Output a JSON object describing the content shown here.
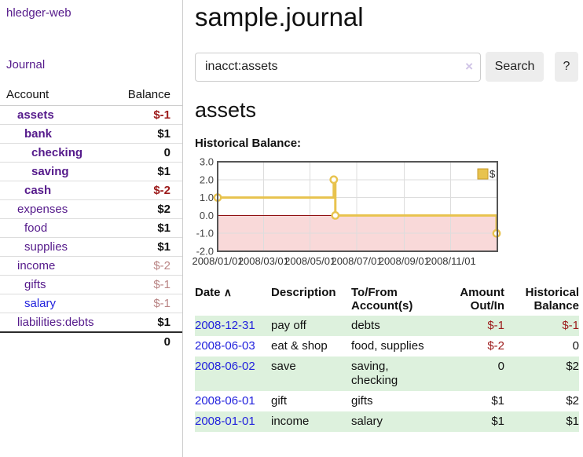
{
  "sidebar": {
    "brand": "hledger-web",
    "journal_link": "Journal",
    "accounts_table": {
      "headers": {
        "account": "Account",
        "balance": "Balance"
      },
      "rows": [
        {
          "label": "assets",
          "depth": 1,
          "bold": true,
          "link_color": "purple",
          "balance": "$-1",
          "balance_class": "neg-strong"
        },
        {
          "label": "bank",
          "depth": 2,
          "bold": true,
          "link_color": "purple",
          "balance": "$1",
          "balance_class": "pos"
        },
        {
          "label": "checking",
          "depth": 3,
          "bold": true,
          "link_color": "purple",
          "balance": "0",
          "balance_class": "pos"
        },
        {
          "label": "saving",
          "depth": 3,
          "bold": true,
          "link_color": "purple",
          "balance": "$1",
          "balance_class": "pos"
        },
        {
          "label": "cash",
          "depth": 2,
          "bold": true,
          "link_color": "purple",
          "balance": "$-2",
          "balance_class": "neg-strong"
        },
        {
          "label": "expenses",
          "depth": 1,
          "bold": false,
          "link_color": "purple",
          "balance": "$2",
          "balance_class": "pos"
        },
        {
          "label": "food",
          "depth": 2,
          "bold": false,
          "link_color": "purple",
          "balance": "$1",
          "balance_class": "pos"
        },
        {
          "label": "supplies",
          "depth": 2,
          "bold": false,
          "link_color": "purple",
          "balance": "$1",
          "balance_class": "pos"
        },
        {
          "label": "income",
          "depth": 1,
          "bold": false,
          "link_color": "purple",
          "balance": "$-2",
          "balance_class": "neg-soft"
        },
        {
          "label": "gifts",
          "depth": 2,
          "bold": false,
          "link_color": "purple",
          "balance": "$-1",
          "balance_class": "neg-soft"
        },
        {
          "label": "salary",
          "depth": 2,
          "bold": false,
          "link_color": "blue",
          "balance": "$-1",
          "balance_class": "neg-soft"
        },
        {
          "label": "liabilities:debts",
          "depth": 1,
          "bold": false,
          "link_color": "purple",
          "balance": "$1",
          "balance_class": "pos"
        }
      ],
      "total": "0"
    }
  },
  "header": {
    "title": "sample.journal"
  },
  "search": {
    "query": "inacct:assets",
    "clear_icon": "×",
    "button_label": "Search",
    "help_label": "?"
  },
  "register": {
    "account_title": "assets",
    "chart_heading": "Historical Balance:",
    "table": {
      "headers": {
        "date": "Date",
        "sort_icon": "∧",
        "description": "Description",
        "accounts": "To/From Account(s)",
        "amount": "Amount Out/In",
        "historical": "Historical Balance"
      },
      "rows": [
        {
          "date": "2008-12-31",
          "description": "pay off",
          "accounts": "debts",
          "amount": "$-1",
          "amount_negative": true,
          "historical": "$-1",
          "historical_negative": true
        },
        {
          "date": "2008-06-03",
          "description": "eat & shop",
          "accounts": "food, supplies",
          "amount": "$-2",
          "amount_negative": true,
          "historical": "0",
          "historical_negative": false
        },
        {
          "date": "2008-06-02",
          "description": "save",
          "accounts": "saving, checking",
          "amount": "0",
          "amount_negative": false,
          "historical": "$2",
          "historical_negative": false
        },
        {
          "date": "2008-06-01",
          "description": "gift",
          "accounts": "gifts",
          "amount": "$1",
          "amount_negative": false,
          "historical": "$2",
          "historical_negative": false
        },
        {
          "date": "2008-01-01",
          "description": "income",
          "accounts": "salary",
          "amount": "$1",
          "amount_negative": false,
          "historical": "$1",
          "historical_negative": false
        }
      ]
    }
  },
  "chart_data": {
    "type": "line",
    "step": true,
    "title": "Historical Balance:",
    "series": [
      {
        "name": "$",
        "color": "#e8c34e",
        "points": [
          {
            "date": "2008-01-01",
            "value": 1
          },
          {
            "date": "2008-06-01",
            "value": 2
          },
          {
            "date": "2008-06-03",
            "value": 0
          },
          {
            "date": "2008-12-31",
            "value": -1
          }
        ]
      }
    ],
    "x_range": [
      "2008-01-01",
      "2009-01-01"
    ],
    "x_tick_labels": [
      "2008/01/01",
      "2008/03/01",
      "2008/05/01",
      "2008/07/01",
      "2008/09/01",
      "2008/11/01"
    ],
    "x_tick_dates": [
      "2008-01-01",
      "2008-03-01",
      "2008-05-01",
      "2008-07-01",
      "2008-09-01",
      "2008-11-01"
    ],
    "y_ticks": [
      3.0,
      2.0,
      1.0,
      0.0,
      -1.0,
      -2.0
    ],
    "ylim": [
      -2,
      3
    ],
    "grid": true,
    "legend": {
      "label": "$",
      "position": "top-right"
    },
    "negative_region": true
  },
  "colors": {
    "purple_link": "#551A8B",
    "blue_link": "#2222dd",
    "negative_strong": "#9c1a1a",
    "negative_soft": "#b98484",
    "row_stripe_green": "#ddf1dd",
    "chart_line_gold": "#e8c34e",
    "chart_negative_pink": "#f9d9d9",
    "chart_zero_line": "#8f0e10",
    "chart_border": "#555555",
    "grid_line": "#dddddd",
    "button_bg": "#ededed"
  }
}
